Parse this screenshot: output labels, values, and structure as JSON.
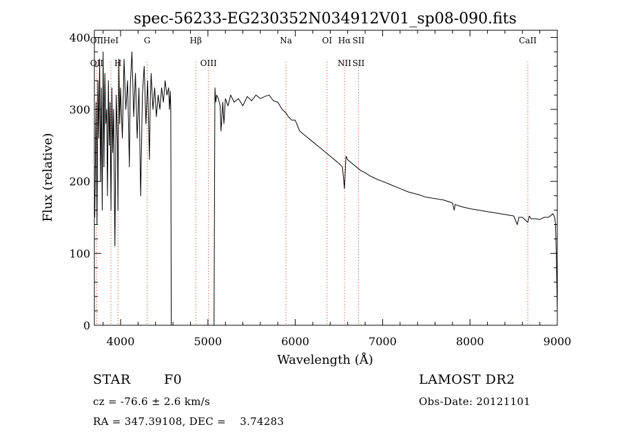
{
  "chart_data": {
    "type": "line",
    "title": "spec-56233-EG230352N034912V01_sp08-090.fits",
    "xlabel": "Wavelength (Å)",
    "ylabel": "Flux (relative)",
    "xlim": [
      3700,
      9000
    ],
    "ylim": [
      0,
      410
    ],
    "xticks": [
      {
        "value": 4000,
        "label": "4000"
      },
      {
        "value": 5000,
        "label": "5000"
      },
      {
        "value": 6000,
        "label": "6000"
      },
      {
        "value": 7000,
        "label": "7000"
      },
      {
        "value": 8000,
        "label": "8000"
      },
      {
        "value": 9000,
        "label": "9000"
      }
    ],
    "yticks": [
      {
        "value": 0,
        "label": "0"
      },
      {
        "value": 100,
        "label": "100"
      },
      {
        "value": 200,
        "label": "200"
      },
      {
        "value": 300,
        "label": "300"
      },
      {
        "value": 400,
        "label": "400"
      }
    ],
    "series": [
      {
        "color": "#000000",
        "x": [
          3705,
          3720,
          3730,
          3740,
          3750,
          3760,
          3770,
          3780,
          3790,
          3800,
          3810,
          3820,
          3830,
          3840,
          3850,
          3860,
          3870,
          3880,
          3890,
          3900,
          3910,
          3920,
          3935,
          3950,
          3965,
          3970,
          3980,
          3990,
          4000,
          4020,
          4040,
          4060,
          4080,
          4101,
          4110,
          4130,
          4150,
          4170,
          4190,
          4210,
          4230,
          4250,
          4270,
          4290,
          4310,
          4330,
          4340,
          4350,
          4370,
          4390,
          4410,
          4430,
          4450,
          4470,
          4490,
          4510,
          4530,
          4550,
          4560,
          4570,
          4575,
          4580,
          5070,
          5080,
          5090,
          5100,
          5120,
          5140,
          5150,
          5170,
          5183,
          5200,
          5230,
          5260,
          5300,
          5350,
          5400,
          5450,
          5500,
          5550,
          5600,
          5650,
          5700,
          5750,
          5800,
          5850,
          5893,
          5920,
          5960,
          6000,
          6050,
          6100,
          6150,
          6200,
          6250,
          6300,
          6350,
          6400,
          6450,
          6500,
          6540,
          6563,
          6580,
          6600,
          6650,
          6700,
          6750,
          6800,
          6850,
          6900,
          6950,
          7000,
          7100,
          7200,
          7300,
          7400,
          7500,
          7600,
          7700,
          7800,
          7820,
          7830,
          7850,
          7900,
          8000,
          8100,
          8200,
          8300,
          8400,
          8500,
          8542,
          8560,
          8600,
          8662,
          8680,
          8700,
          8750,
          8800,
          8850,
          8900,
          8950,
          8970,
          8980,
          8990,
          9000
        ],
        "y": [
          150,
          310,
          140,
          340,
          260,
          370,
          200,
          330,
          160,
          380,
          220,
          350,
          280,
          300,
          180,
          340,
          250,
          310,
          160,
          330,
          240,
          300,
          110,
          320,
          250,
          160,
          370,
          280,
          330,
          260,
          370,
          300,
          340,
          220,
          330,
          380,
          290,
          350,
          260,
          330,
          180,
          320,
          360,
          280,
          340,
          230,
          310,
          350,
          300,
          330,
          290,
          320,
          300,
          330,
          310,
          340,
          320,
          330,
          300,
          325,
          300,
          0,
          0,
          330,
          310,
          320,
          315,
          305,
          270,
          310,
          280,
          315,
          305,
          320,
          310,
          315,
          305,
          318,
          312,
          320,
          315,
          318,
          320,
          312,
          310,
          300,
          295,
          290,
          285,
          285,
          270,
          265,
          260,
          255,
          250,
          245,
          240,
          235,
          230,
          225,
          220,
          190,
          235,
          230,
          225,
          220,
          215,
          212,
          208,
          205,
          202,
          200,
          195,
          190,
          185,
          182,
          178,
          176,
          174,
          170,
          160,
          168,
          167,
          165,
          162,
          160,
          158,
          156,
          154,
          152,
          140,
          150,
          150,
          143,
          152,
          148,
          148,
          147,
          150,
          150,
          155,
          150,
          140,
          90,
          20
        ]
      }
    ],
    "lines": [
      {
        "wl": 3727,
        "top": "OII",
        "bottom": "OII"
      },
      {
        "wl": 3889,
        "top": "HeI",
        "bottom": ""
      },
      {
        "wl": 3970,
        "top": "",
        "bottom": "H"
      },
      {
        "wl": 4305,
        "top": "G",
        "bottom": ""
      },
      {
        "wl": 4861,
        "top": "Hβ",
        "bottom": ""
      },
      {
        "wl": 5007,
        "top": "",
        "bottom": "OIII"
      },
      {
        "wl": 5893,
        "top": "Na",
        "bottom": ""
      },
      {
        "wl": 6364,
        "top": "OI",
        "bottom": ""
      },
      {
        "wl": 6563,
        "top": "Hα",
        "bottom": "NII"
      },
      {
        "wl": 6724,
        "top": "SII",
        "bottom": "SII"
      },
      {
        "wl": 8662,
        "top": "CaII",
        "bottom": ""
      }
    ]
  },
  "info": {
    "class_label": "STAR",
    "subclass": "F0",
    "survey": "LAMOST DR2",
    "cz": "cz = -76.6 ± 2.6 km/s",
    "obs_date": "Obs-Date: 20121101",
    "radec": "RA = 347.39108, DEC =    3.74283"
  }
}
